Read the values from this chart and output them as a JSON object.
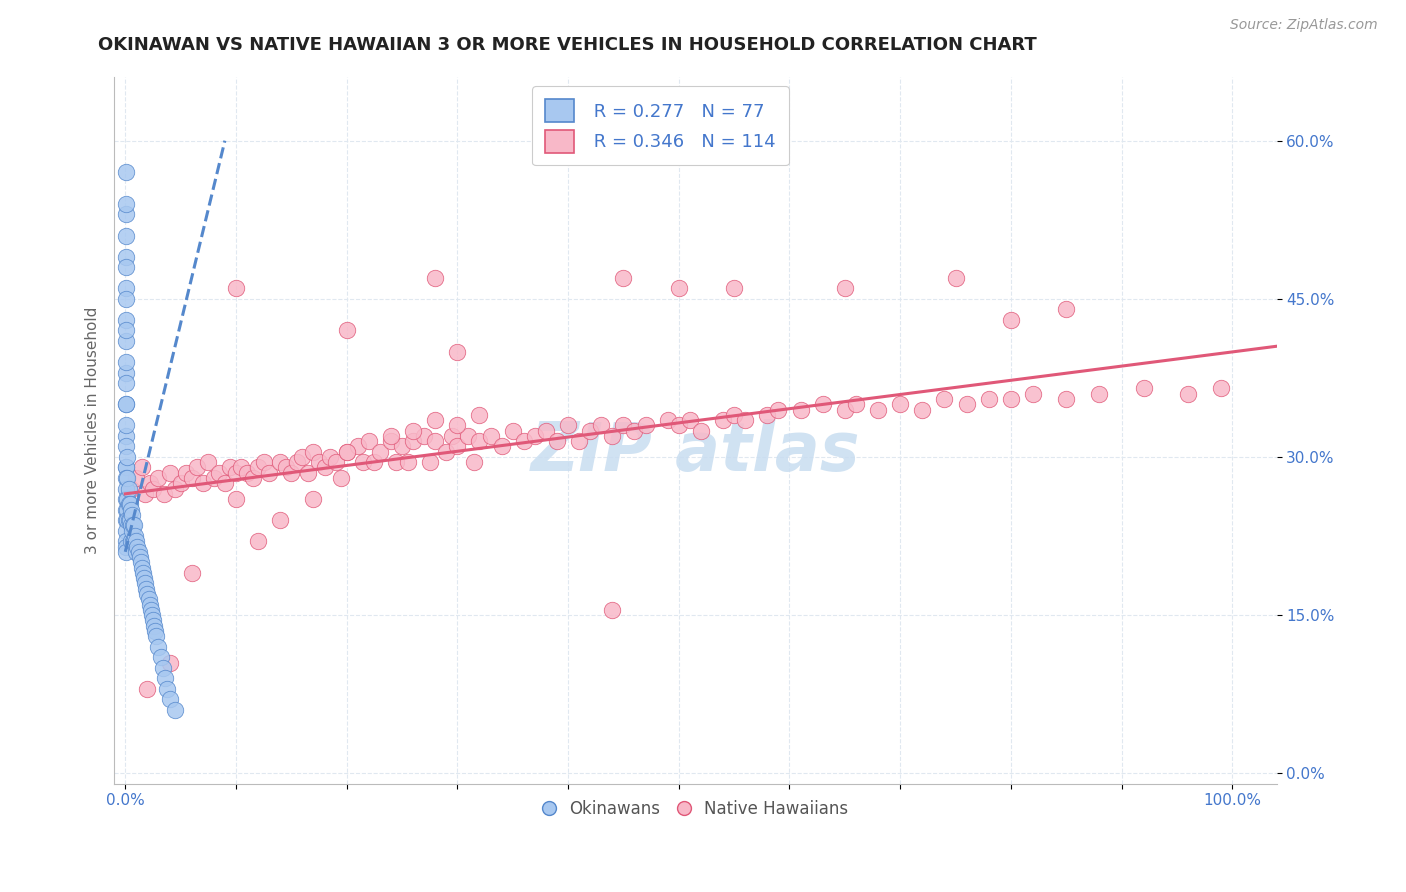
{
  "title": "OKINAWAN VS NATIVE HAWAIIAN 3 OR MORE VEHICLES IN HOUSEHOLD CORRELATION CHART",
  "source_text": "Source: ZipAtlas.com",
  "ylabel": "3 or more Vehicles in Household",
  "x_ticks": [
    0.0,
    0.1,
    0.2,
    0.3,
    0.4,
    0.5,
    0.6,
    0.7,
    0.8,
    0.9,
    1.0
  ],
  "x_tick_labels": [
    "0.0%",
    "",
    "",
    "",
    "",
    "",
    "",
    "",
    "",
    "",
    "100.0%"
  ],
  "y_ticks": [
    0.0,
    0.15,
    0.3,
    0.45,
    0.6
  ],
  "y_tick_labels": [
    "0.0%",
    "15.0%",
    "30.0%",
    "45.0%",
    "60.0%"
  ],
  "xlim": [
    -0.01,
    1.04
  ],
  "ylim": [
    -0.01,
    0.66
  ],
  "legend_r1": "R = 0.277",
  "legend_n1": "N = 77",
  "legend_r2": "R = 0.346",
  "legend_n2": "N = 114",
  "blue_color": "#a8c8f0",
  "pink_color": "#f8b8c8",
  "blue_line_color": "#5588cc",
  "pink_line_color": "#e05878",
  "watermark_color": "#c8ddf0",
  "grid_color": "#e0e8f0",
  "okinawan_x": [
    0.0005,
    0.0005,
    0.0005,
    0.0005,
    0.0005,
    0.0005,
    0.0005,
    0.0005,
    0.0005,
    0.0005,
    0.001,
    0.001,
    0.001,
    0.001,
    0.001,
    0.001,
    0.001,
    0.001,
    0.001,
    0.001,
    0.001,
    0.001,
    0.001,
    0.001,
    0.001,
    0.001,
    0.001,
    0.001,
    0.001,
    0.001,
    0.002,
    0.002,
    0.002,
    0.002,
    0.002,
    0.003,
    0.003,
    0.003,
    0.004,
    0.004,
    0.005,
    0.005,
    0.005,
    0.006,
    0.006,
    0.007,
    0.007,
    0.008,
    0.008,
    0.009,
    0.01,
    0.01,
    0.011,
    0.012,
    0.013,
    0.014,
    0.015,
    0.016,
    0.017,
    0.018,
    0.019,
    0.02,
    0.021,
    0.022,
    0.023,
    0.024,
    0.025,
    0.026,
    0.027,
    0.028,
    0.03,
    0.032,
    0.034,
    0.036,
    0.038,
    0.04,
    0.045
  ],
  "okinawan_y": [
    0.57,
    0.53,
    0.49,
    0.46,
    0.43,
    0.41,
    0.38,
    0.35,
    0.32,
    0.29,
    0.54,
    0.51,
    0.48,
    0.45,
    0.42,
    0.39,
    0.37,
    0.35,
    0.33,
    0.31,
    0.29,
    0.28,
    0.27,
    0.26,
    0.25,
    0.24,
    0.23,
    0.22,
    0.215,
    0.21,
    0.3,
    0.28,
    0.26,
    0.25,
    0.24,
    0.27,
    0.255,
    0.24,
    0.255,
    0.24,
    0.25,
    0.235,
    0.22,
    0.245,
    0.23,
    0.235,
    0.22,
    0.235,
    0.22,
    0.225,
    0.22,
    0.21,
    0.215,
    0.21,
    0.205,
    0.2,
    0.195,
    0.19,
    0.185,
    0.18,
    0.175,
    0.17,
    0.165,
    0.16,
    0.155,
    0.15,
    0.145,
    0.14,
    0.135,
    0.13,
    0.12,
    0.11,
    0.1,
    0.09,
    0.08,
    0.07,
    0.06
  ],
  "hawaiian_x": [
    0.005,
    0.01,
    0.015,
    0.018,
    0.022,
    0.025,
    0.03,
    0.035,
    0.04,
    0.045,
    0.05,
    0.055,
    0.06,
    0.065,
    0.07,
    0.075,
    0.08,
    0.085,
    0.09,
    0.095,
    0.1,
    0.105,
    0.11,
    0.115,
    0.12,
    0.125,
    0.13,
    0.14,
    0.145,
    0.15,
    0.155,
    0.16,
    0.165,
    0.17,
    0.175,
    0.18,
    0.185,
    0.19,
    0.195,
    0.2,
    0.21,
    0.215,
    0.22,
    0.225,
    0.23,
    0.24,
    0.245,
    0.25,
    0.255,
    0.26,
    0.27,
    0.275,
    0.28,
    0.29,
    0.295,
    0.3,
    0.31,
    0.315,
    0.32,
    0.33,
    0.34,
    0.35,
    0.36,
    0.37,
    0.38,
    0.39,
    0.4,
    0.41,
    0.42,
    0.43,
    0.44,
    0.45,
    0.46,
    0.47,
    0.49,
    0.5,
    0.51,
    0.52,
    0.54,
    0.55,
    0.56,
    0.58,
    0.59,
    0.61,
    0.63,
    0.65,
    0.66,
    0.68,
    0.7,
    0.72,
    0.74,
    0.76,
    0.78,
    0.8,
    0.82,
    0.85,
    0.88,
    0.92,
    0.96,
    0.99,
    0.28,
    0.3,
    0.32,
    0.26,
    0.24,
    0.2,
    0.17,
    0.14,
    0.12,
    0.1,
    0.06,
    0.04,
    0.02,
    0.44
  ],
  "hawaiian_y": [
    0.27,
    0.28,
    0.29,
    0.265,
    0.275,
    0.27,
    0.28,
    0.265,
    0.285,
    0.27,
    0.275,
    0.285,
    0.28,
    0.29,
    0.275,
    0.295,
    0.28,
    0.285,
    0.275,
    0.29,
    0.285,
    0.29,
    0.285,
    0.28,
    0.29,
    0.295,
    0.285,
    0.295,
    0.29,
    0.285,
    0.295,
    0.3,
    0.285,
    0.305,
    0.295,
    0.29,
    0.3,
    0.295,
    0.28,
    0.305,
    0.31,
    0.295,
    0.315,
    0.295,
    0.305,
    0.315,
    0.295,
    0.31,
    0.295,
    0.315,
    0.32,
    0.295,
    0.315,
    0.305,
    0.32,
    0.31,
    0.32,
    0.295,
    0.315,
    0.32,
    0.31,
    0.325,
    0.315,
    0.32,
    0.325,
    0.315,
    0.33,
    0.315,
    0.325,
    0.33,
    0.32,
    0.33,
    0.325,
    0.33,
    0.335,
    0.33,
    0.335,
    0.325,
    0.335,
    0.34,
    0.335,
    0.34,
    0.345,
    0.345,
    0.35,
    0.345,
    0.35,
    0.345,
    0.35,
    0.345,
    0.355,
    0.35,
    0.355,
    0.355,
    0.36,
    0.355,
    0.36,
    0.365,
    0.36,
    0.365,
    0.335,
    0.33,
    0.34,
    0.325,
    0.32,
    0.305,
    0.26,
    0.24,
    0.22,
    0.26,
    0.19,
    0.105,
    0.08,
    0.155
  ],
  "hawaiian_outlier_x": [
    0.28,
    0.45,
    0.5,
    0.55,
    0.65,
    0.75,
    0.8,
    0.85,
    0.1,
    0.2,
    0.3
  ],
  "hawaiian_outlier_y": [
    0.47,
    0.47,
    0.46,
    0.46,
    0.46,
    0.47,
    0.43,
    0.44,
    0.46,
    0.42,
    0.4
  ],
  "pink_line_x0": 0.0,
  "pink_line_y0": 0.265,
  "pink_line_x1": 1.04,
  "pink_line_y1": 0.405,
  "blue_line_x0": 0.0,
  "blue_line_y0": 0.21,
  "blue_line_x1": 0.09,
  "blue_line_y1": 0.6
}
